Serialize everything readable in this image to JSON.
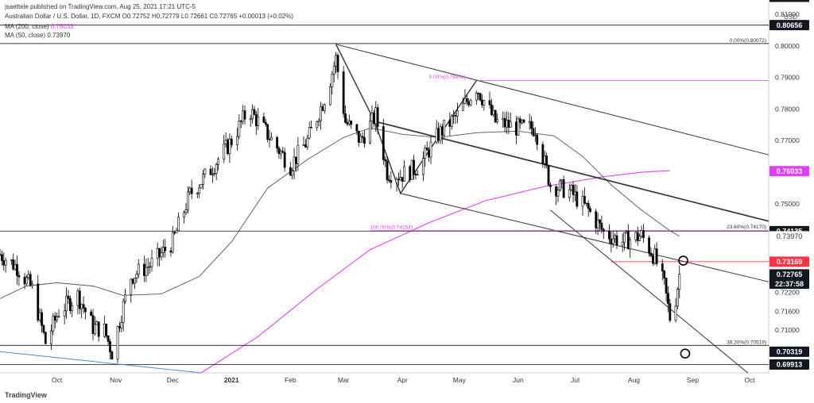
{
  "header": {
    "line1": "jsaettele published on TradingView.com, Aug 25, 2021 17:21 UTC-5",
    "symbol_line": "Australian Dollar / U.S. Dollar, 1D, FXCM  O0.72752 H0.72779 L0.72661 C0.72765 +0.00013 (+0.02%)",
    "ma200_label": "MA (200, close)",
    "ma200_value": "0.76033",
    "ma50_label": "MA (50, close)",
    "ma50_value": "0.73970"
  },
  "footer": {
    "logo": "TradingView"
  },
  "colors": {
    "up": "#ffffff",
    "down": "#000000",
    "ma200": "#e040fb",
    "ma50": "#555555",
    "fib": "#e040fb",
    "trend": "#333333",
    "red_badge": "#ff3344",
    "magenta_badge": "#e040fb",
    "blue_line": "#4a8ad4"
  },
  "chart_data": {
    "type": "candlestick",
    "quote_currency": "USD",
    "y_range": [
      0.6965,
      0.8145
    ],
    "y_ticks": [
      "0.81000",
      "0.80000",
      "0.79000",
      "0.78000",
      "0.77000",
      "0.75000",
      "0.72200",
      "0.71600",
      "0.71000"
    ],
    "x_ticks": [
      {
        "label": "Oct",
        "date": "2020-10-01"
      },
      {
        "label": "Nov",
        "date": "2020-11-01"
      },
      {
        "label": "Dec",
        "date": "2020-12-01"
      },
      {
        "label": "2021",
        "date": "2021-01-01"
      },
      {
        "label": "Feb",
        "date": "2021-02-01"
      },
      {
        "label": "Mar",
        "date": "2021-03-01"
      },
      {
        "label": "Apr",
        "date": "2021-04-01"
      },
      {
        "label": "May",
        "date": "2021-05-01"
      },
      {
        "label": "Jun",
        "date": "2021-06-01"
      },
      {
        "label": "Jul",
        "date": "2021-07-01"
      },
      {
        "label": "Aug",
        "date": "2021-08-01"
      },
      {
        "label": "Sep",
        "date": "2021-09-01"
      },
      {
        "label": "Oct",
        "date": "2021-10-01"
      }
    ],
    "x_range": [
      "2020-09-01",
      "2021-10-11"
    ],
    "price_badges": [
      {
        "label": "0.81833",
        "value": 0.8155,
        "style": "dark"
      },
      {
        "label": "0.80656",
        "value": 0.80656,
        "style": "dark"
      },
      {
        "label": "0.76033",
        "value": 0.76033,
        "style": "magenta"
      },
      {
        "label": "0.74135",
        "value": 0.74135,
        "style": "dark"
      },
      {
        "label": "0.73970",
        "value": 0.7397,
        "style": "partial"
      },
      {
        "label": "0.73169",
        "value": 0.73169,
        "style": "red"
      },
      {
        "label": "0.72765",
        "value": 0.72765,
        "style": "dark"
      },
      {
        "label": "22:37:58",
        "value": 0.7247,
        "style": "dark"
      },
      {
        "label": "0.70319",
        "value": 0.70319,
        "style": "dark"
      },
      {
        "label": "0.69913",
        "value": 0.69913,
        "style": "dark"
      }
    ],
    "horizontal_levels": [
      {
        "value": 0.8155
      },
      {
        "value": 0.80656
      },
      {
        "value": 0.80072
      },
      {
        "value": 0.74135
      },
      {
        "value": 0.73169,
        "color": "#ff3344",
        "from": "2021-07-20"
      },
      {
        "value": 0.70519
      },
      {
        "value": 0.69913
      }
    ],
    "fib_labels": [
      {
        "text": "0.00%(0.80072)",
        "value": 0.80072,
        "align": "right",
        "color": "#333333"
      },
      {
        "text": "0.00%(0.78908)",
        "value": 0.78908,
        "date": "2021-04-15",
        "color": "#e040fb"
      },
      {
        "text": "23.60%(0.74170)",
        "value": 0.7417,
        "align": "right",
        "color": "#333333"
      },
      {
        "text": "100.00%(0.74154)",
        "value": 0.74154,
        "date": "2021-03-15",
        "color": "#e040fb"
      },
      {
        "text": "38.20%(0.70519)",
        "value": 0.70519,
        "align": "right",
        "color": "#333333"
      }
    ],
    "trendlines": [
      {
        "points": [
          [
            "2021-02-25",
            0.8005
          ],
          [
            "2021-10-11",
            0.7655
          ]
        ],
        "width": 1
      },
      {
        "points": [
          [
            "2021-03-18",
            0.776
          ],
          [
            "2021-10-11",
            0.7445
          ]
        ],
        "width": 1.6
      },
      {
        "points": [
          [
            "2021-02-25",
            0.8005
          ],
          [
            "2021-03-17",
            0.7765
          ],
          [
            "2021-03-31",
            0.7533
          ],
          [
            "2021-05-10",
            0.789
          ]
        ],
        "width": 1.4
      },
      {
        "points": [
          [
            "2021-03-31",
            0.7533
          ],
          [
            "2021-10-11",
            0.7253
          ]
        ],
        "width": 1
      },
      {
        "points": [
          [
            "2021-06-18",
            0.748
          ],
          [
            "2021-09-30",
            0.6965
          ]
        ],
        "width": 1
      },
      {
        "points": [
          [
            "2020-09-01",
            0.7032
          ],
          [
            "2020-12-16",
            0.6965
          ]
        ],
        "width": 1,
        "color": "#4a8ad4"
      },
      {
        "points": [
          [
            "2021-05-12",
            0.789
          ],
          [
            "2021-10-11",
            0.789
          ]
        ],
        "width": 0.8,
        "color": "#e040fb"
      },
      {
        "points": [
          [
            "2021-03-15",
            0.74154
          ],
          [
            "2021-10-11",
            0.74154
          ]
        ],
        "width": 0.8,
        "color": "#e040fb"
      }
    ],
    "circles": [
      {
        "date": "2021-08-27",
        "value": 0.732
      },
      {
        "date": "2021-08-28",
        "value": 0.7026
      }
    ],
    "ma200": [
      [
        "2020-12-16",
        0.6965
      ],
      [
        "2021-01-15",
        0.708
      ],
      [
        "2021-02-15",
        0.723
      ],
      [
        "2021-03-15",
        0.7355
      ],
      [
        "2021-04-15",
        0.744
      ],
      [
        "2021-05-15",
        0.751
      ],
      [
        "2021-06-15",
        0.7555
      ],
      [
        "2021-07-15",
        0.7585
      ],
      [
        "2021-08-05",
        0.76
      ],
      [
        "2021-08-20",
        0.7605
      ]
    ],
    "ma50": [
      [
        "2020-09-01",
        0.72
      ],
      [
        "2020-09-15",
        0.724
      ],
      [
        "2020-10-01",
        0.725
      ],
      [
        "2020-10-20",
        0.724
      ],
      [
        "2020-11-05",
        0.721
      ],
      [
        "2020-11-25",
        0.7215
      ],
      [
        "2020-12-15",
        0.727
      ],
      [
        "2021-01-01",
        0.738
      ],
      [
        "2021-01-20",
        0.755
      ],
      [
        "2021-02-10",
        0.764
      ],
      [
        "2021-03-01",
        0.771
      ],
      [
        "2021-03-15",
        0.774
      ],
      [
        "2021-04-01",
        0.772
      ],
      [
        "2021-04-20",
        0.771
      ],
      [
        "2021-05-10",
        0.7725
      ],
      [
        "2021-06-01",
        0.773
      ],
      [
        "2021-06-20",
        0.7715
      ],
      [
        "2021-07-05",
        0.765
      ],
      [
        "2021-07-20",
        0.756
      ],
      [
        "2021-08-05",
        0.748
      ],
      [
        "2021-08-20",
        0.7415
      ],
      [
        "2021-08-25",
        0.7397
      ]
    ],
    "closes_anchor": [
      [
        "2020-09-01",
        0.734
      ],
      [
        "2020-09-10",
        0.73
      ],
      [
        "2020-09-18",
        0.723
      ],
      [
        "2020-09-25",
        0.706
      ],
      [
        "2020-10-02",
        0.716
      ],
      [
        "2020-10-12",
        0.721
      ],
      [
        "2020-10-20",
        0.711
      ],
      [
        "2020-10-26",
        0.71
      ],
      [
        "2020-10-30",
        0.703
      ],
      [
        "2020-11-03",
        0.713
      ],
      [
        "2020-11-09",
        0.727
      ],
      [
        "2020-11-20",
        0.731
      ],
      [
        "2020-12-01",
        0.738
      ],
      [
        "2020-12-10",
        0.753
      ],
      [
        "2020-12-20",
        0.76
      ],
      [
        "2021-01-01",
        0.77
      ],
      [
        "2021-01-10",
        0.78
      ],
      [
        "2021-01-20",
        0.772
      ],
      [
        "2021-02-01",
        0.762
      ],
      [
        "2021-02-10",
        0.77
      ],
      [
        "2021-02-20",
        0.785
      ],
      [
        "2021-02-25",
        0.796
      ],
      [
        "2021-03-02",
        0.776
      ],
      [
        "2021-03-10",
        0.77
      ],
      [
        "2021-03-18",
        0.778
      ],
      [
        "2021-03-24",
        0.76
      ],
      [
        "2021-03-31",
        0.759
      ],
      [
        "2021-04-10",
        0.762
      ],
      [
        "2021-04-20",
        0.772
      ],
      [
        "2021-04-30",
        0.778
      ],
      [
        "2021-05-10",
        0.787
      ],
      [
        "2021-05-20",
        0.776
      ],
      [
        "2021-06-01",
        0.774
      ],
      [
        "2021-06-10",
        0.774
      ],
      [
        "2021-06-18",
        0.756
      ],
      [
        "2021-06-28",
        0.754
      ],
      [
        "2021-07-08",
        0.748
      ],
      [
        "2021-07-16",
        0.741
      ],
      [
        "2021-07-26",
        0.738
      ],
      [
        "2021-08-05",
        0.74
      ],
      [
        "2021-08-12",
        0.733
      ],
      [
        "2021-08-17",
        0.724
      ],
      [
        "2021-08-20",
        0.714
      ],
      [
        "2021-08-23",
        0.72
      ],
      [
        "2021-08-25",
        0.72765
      ]
    ]
  }
}
